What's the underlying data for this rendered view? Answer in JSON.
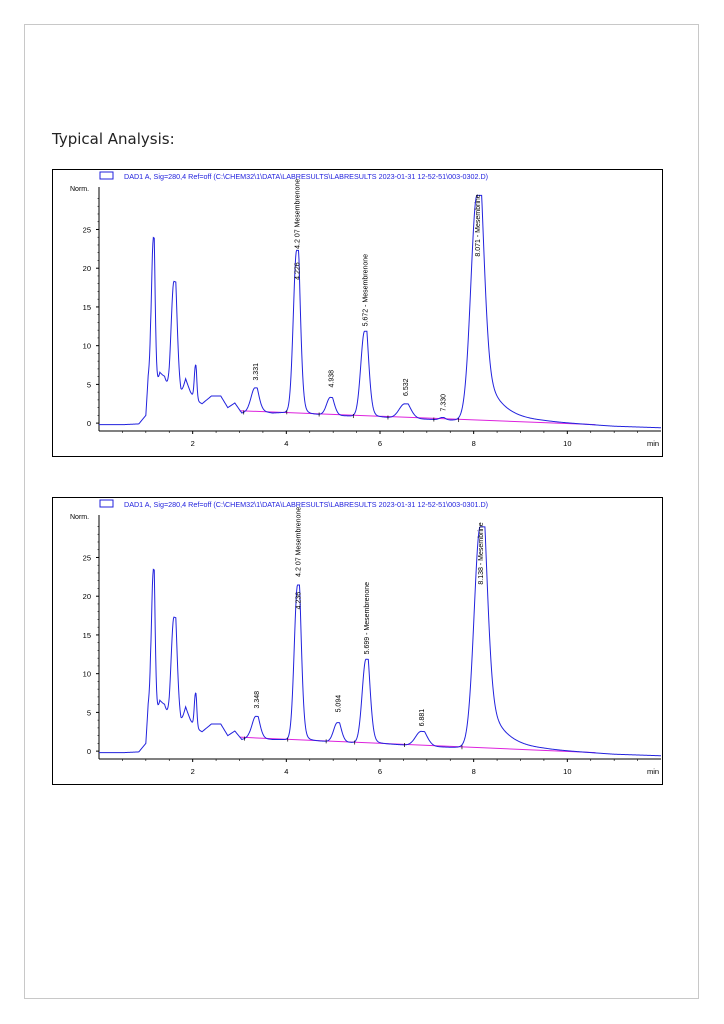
{
  "heading": "Typical Analysis:",
  "chart_data": [
    {
      "type": "line",
      "legend": "DAD1 A, Sig=280,4 Ref=off (C:\\CHEM32\\1\\DATA\\LABRESULTS\\LABRESULTS 2023-01-31 12-52-51\\003-0302.D)",
      "ylabel": "Norm.",
      "xunit": "min",
      "xlim": [
        0,
        12
      ],
      "ylim": [
        -0.5,
        31
      ],
      "yticks": [
        "0",
        "5",
        "10",
        "15",
        "20",
        "25"
      ],
      "xticks": [
        "2",
        "4",
        "6",
        "8",
        "10"
      ],
      "trace_color": "#2222dd",
      "baseline_color": "#dd22dd",
      "baseline": [
        [
          3.0,
          1.6
        ],
        [
          10.6,
          -0.2
        ]
      ],
      "base_trace": [
        [
          0,
          -0.2
        ],
        [
          0.5,
          -0.2
        ],
        [
          0.85,
          -0.1
        ],
        [
          1.0,
          1.0
        ],
        [
          1.05,
          6.0
        ],
        [
          1.1,
          8.0
        ],
        [
          1.15,
          4.0
        ],
        [
          1.2,
          3.8
        ],
        [
          1.3,
          6.5
        ],
        [
          1.4,
          6.0
        ],
        [
          1.5,
          3.5
        ],
        [
          1.75,
          3.0
        ],
        [
          1.85,
          5.5
        ],
        [
          1.95,
          4.0
        ],
        [
          2.05,
          3.0
        ],
        [
          2.2,
          2.5
        ],
        [
          2.4,
          3.5
        ],
        [
          2.6,
          3.5
        ],
        [
          2.75,
          2.0
        ],
        [
          2.9,
          2.6
        ],
        [
          3.05,
          1.3
        ],
        [
          3.2,
          1.6
        ],
        [
          3.5,
          1.5
        ],
        [
          3.7,
          1.3
        ],
        [
          4.0,
          1.4
        ],
        [
          4.5,
          1.2
        ],
        [
          5.0,
          1.0
        ],
        [
          5.5,
          0.9
        ],
        [
          6.0,
          0.8
        ],
        [
          6.5,
          0.6
        ],
        [
          7.0,
          0.5
        ],
        [
          7.5,
          0.4
        ],
        [
          8.0,
          0.4
        ],
        [
          8.5,
          0.4
        ],
        [
          9.0,
          0.3
        ],
        [
          9.5,
          0.2
        ],
        [
          10.0,
          0.0
        ],
        [
          10.5,
          -0.2
        ],
        [
          11.0,
          -0.4
        ],
        [
          11.5,
          -0.5
        ],
        [
          12.0,
          -0.6
        ]
      ],
      "peaks": [
        {
          "x": 1.16,
          "h": 20.0,
          "w": 0.035,
          "t": 0.03
        },
        {
          "x": 1.6,
          "h": 15.0,
          "w": 0.06,
          "t": 0.08
        },
        {
          "x": 2.06,
          "h": 4.5,
          "w": 0.025,
          "t": 0.02
        },
        {
          "x": 3.33,
          "h": 3.0,
          "w": 0.08,
          "t": 0.07
        },
        {
          "x": 4.22,
          "h": 21.0,
          "w": 0.07,
          "t": 0.07
        },
        {
          "x": 4.94,
          "h": 2.3,
          "w": 0.08,
          "t": 0.06
        },
        {
          "x": 5.67,
          "h": 11.0,
          "w": 0.08,
          "t": 0.08
        },
        {
          "x": 6.53,
          "h": 1.9,
          "w": 0.12,
          "t": 0.1
        },
        {
          "x": 7.33,
          "h": 0.3,
          "w": 0.06,
          "t": 0.05
        },
        {
          "x": 8.07,
          "h": 29.0,
          "w": 0.13,
          "t": 0.35
        }
      ],
      "annotations": [
        {
          "text": "3.331",
          "x": 3.33,
          "y": 5.5
        },
        {
          "text": "4.226",
          "x": 4.22,
          "y": 18.5
        },
        {
          "text": "4.2 07 Mesembrenone",
          "x": 4.22,
          "y": 22.5
        },
        {
          "text": "4.938",
          "x": 4.94,
          "y": 4.6
        },
        {
          "text": "5.672 - Mesembrenone",
          "x": 5.67,
          "y": 12.5
        },
        {
          "text": "6.532",
          "x": 6.53,
          "y": 3.5
        },
        {
          "text": "7.330",
          "x": 7.33,
          "y": 1.5
        },
        {
          "text": "8.071 - Mesembrine",
          "x": 8.07,
          "y": 21.5
        }
      ]
    },
    {
      "type": "line",
      "legend": "DAD1 A, Sig=280,4 Ref=off (C:\\CHEM32\\1\\DATA\\LABRESULTS\\LABRESULTS 2023-01-31 12-52-51\\003-0301.D)",
      "ylabel": "Norm.",
      "xunit": "min",
      "xlim": [
        0,
        12
      ],
      "ylim": [
        -0.5,
        31
      ],
      "yticks": [
        "0",
        "5",
        "10",
        "15",
        "20",
        "25"
      ],
      "xticks": [
        "2",
        "4",
        "6",
        "8",
        "10"
      ],
      "trace_color": "#2222dd",
      "baseline_color": "#dd22dd",
      "baseline": [
        [
          3.0,
          1.8
        ],
        [
          10.6,
          -0.2
        ]
      ],
      "base_trace": [
        [
          0,
          -0.2
        ],
        [
          0.5,
          -0.2
        ],
        [
          0.85,
          -0.1
        ],
        [
          1.0,
          1.0
        ],
        [
          1.05,
          6.0
        ],
        [
          1.1,
          8.0
        ],
        [
          1.15,
          4.0
        ],
        [
          1.2,
          3.8
        ],
        [
          1.3,
          6.5
        ],
        [
          1.4,
          6.0
        ],
        [
          1.5,
          3.5
        ],
        [
          1.75,
          3.0
        ],
        [
          1.85,
          5.5
        ],
        [
          1.95,
          4.0
        ],
        [
          2.05,
          3.0
        ],
        [
          2.2,
          2.5
        ],
        [
          2.4,
          3.5
        ],
        [
          2.6,
          3.5
        ],
        [
          2.75,
          2.0
        ],
        [
          2.9,
          2.6
        ],
        [
          3.05,
          1.5
        ],
        [
          3.2,
          1.8
        ],
        [
          3.5,
          1.6
        ],
        [
          3.7,
          1.5
        ],
        [
          4.0,
          1.5
        ],
        [
          4.5,
          1.4
        ],
        [
          5.0,
          1.2
        ],
        [
          5.5,
          1.1
        ],
        [
          6.0,
          1.0
        ],
        [
          6.5,
          0.8
        ],
        [
          7.0,
          0.6
        ],
        [
          7.5,
          0.5
        ],
        [
          8.0,
          0.5
        ],
        [
          8.5,
          0.4
        ],
        [
          9.0,
          0.3
        ],
        [
          9.5,
          0.2
        ],
        [
          10.0,
          0.0
        ],
        [
          10.5,
          -0.2
        ],
        [
          11.0,
          -0.4
        ],
        [
          11.5,
          -0.5
        ],
        [
          12.0,
          -0.6
        ]
      ],
      "peaks": [
        {
          "x": 1.16,
          "h": 19.5,
          "w": 0.035,
          "t": 0.03
        },
        {
          "x": 1.6,
          "h": 14.0,
          "w": 0.06,
          "t": 0.08
        },
        {
          "x": 2.06,
          "h": 4.5,
          "w": 0.025,
          "t": 0.02
        },
        {
          "x": 3.35,
          "h": 2.8,
          "w": 0.08,
          "t": 0.07
        },
        {
          "x": 4.24,
          "h": 20.0,
          "w": 0.07,
          "t": 0.07
        },
        {
          "x": 5.09,
          "h": 2.5,
          "w": 0.08,
          "t": 0.06
        },
        {
          "x": 5.7,
          "h": 10.8,
          "w": 0.08,
          "t": 0.08
        },
        {
          "x": 6.88,
          "h": 1.9,
          "w": 0.12,
          "t": 0.1
        },
        {
          "x": 8.14,
          "h": 28.5,
          "w": 0.13,
          "t": 0.35
        }
      ],
      "annotations": [
        {
          "text": "3.348",
          "x": 3.35,
          "y": 5.5
        },
        {
          "text": "4.236",
          "x": 4.24,
          "y": 18.3
        },
        {
          "text": "4.2 07 Mesembrenone",
          "x": 4.24,
          "y": 22.5
        },
        {
          "text": "5.094",
          "x": 5.09,
          "y": 5.0
        },
        {
          "text": "5.699 - Mesembrenone",
          "x": 5.7,
          "y": 12.5
        },
        {
          "text": "6.881",
          "x": 6.88,
          "y": 3.2
        },
        {
          "text": "8.138 - Mesembrine",
          "x": 8.14,
          "y": 21.5
        }
      ]
    }
  ]
}
